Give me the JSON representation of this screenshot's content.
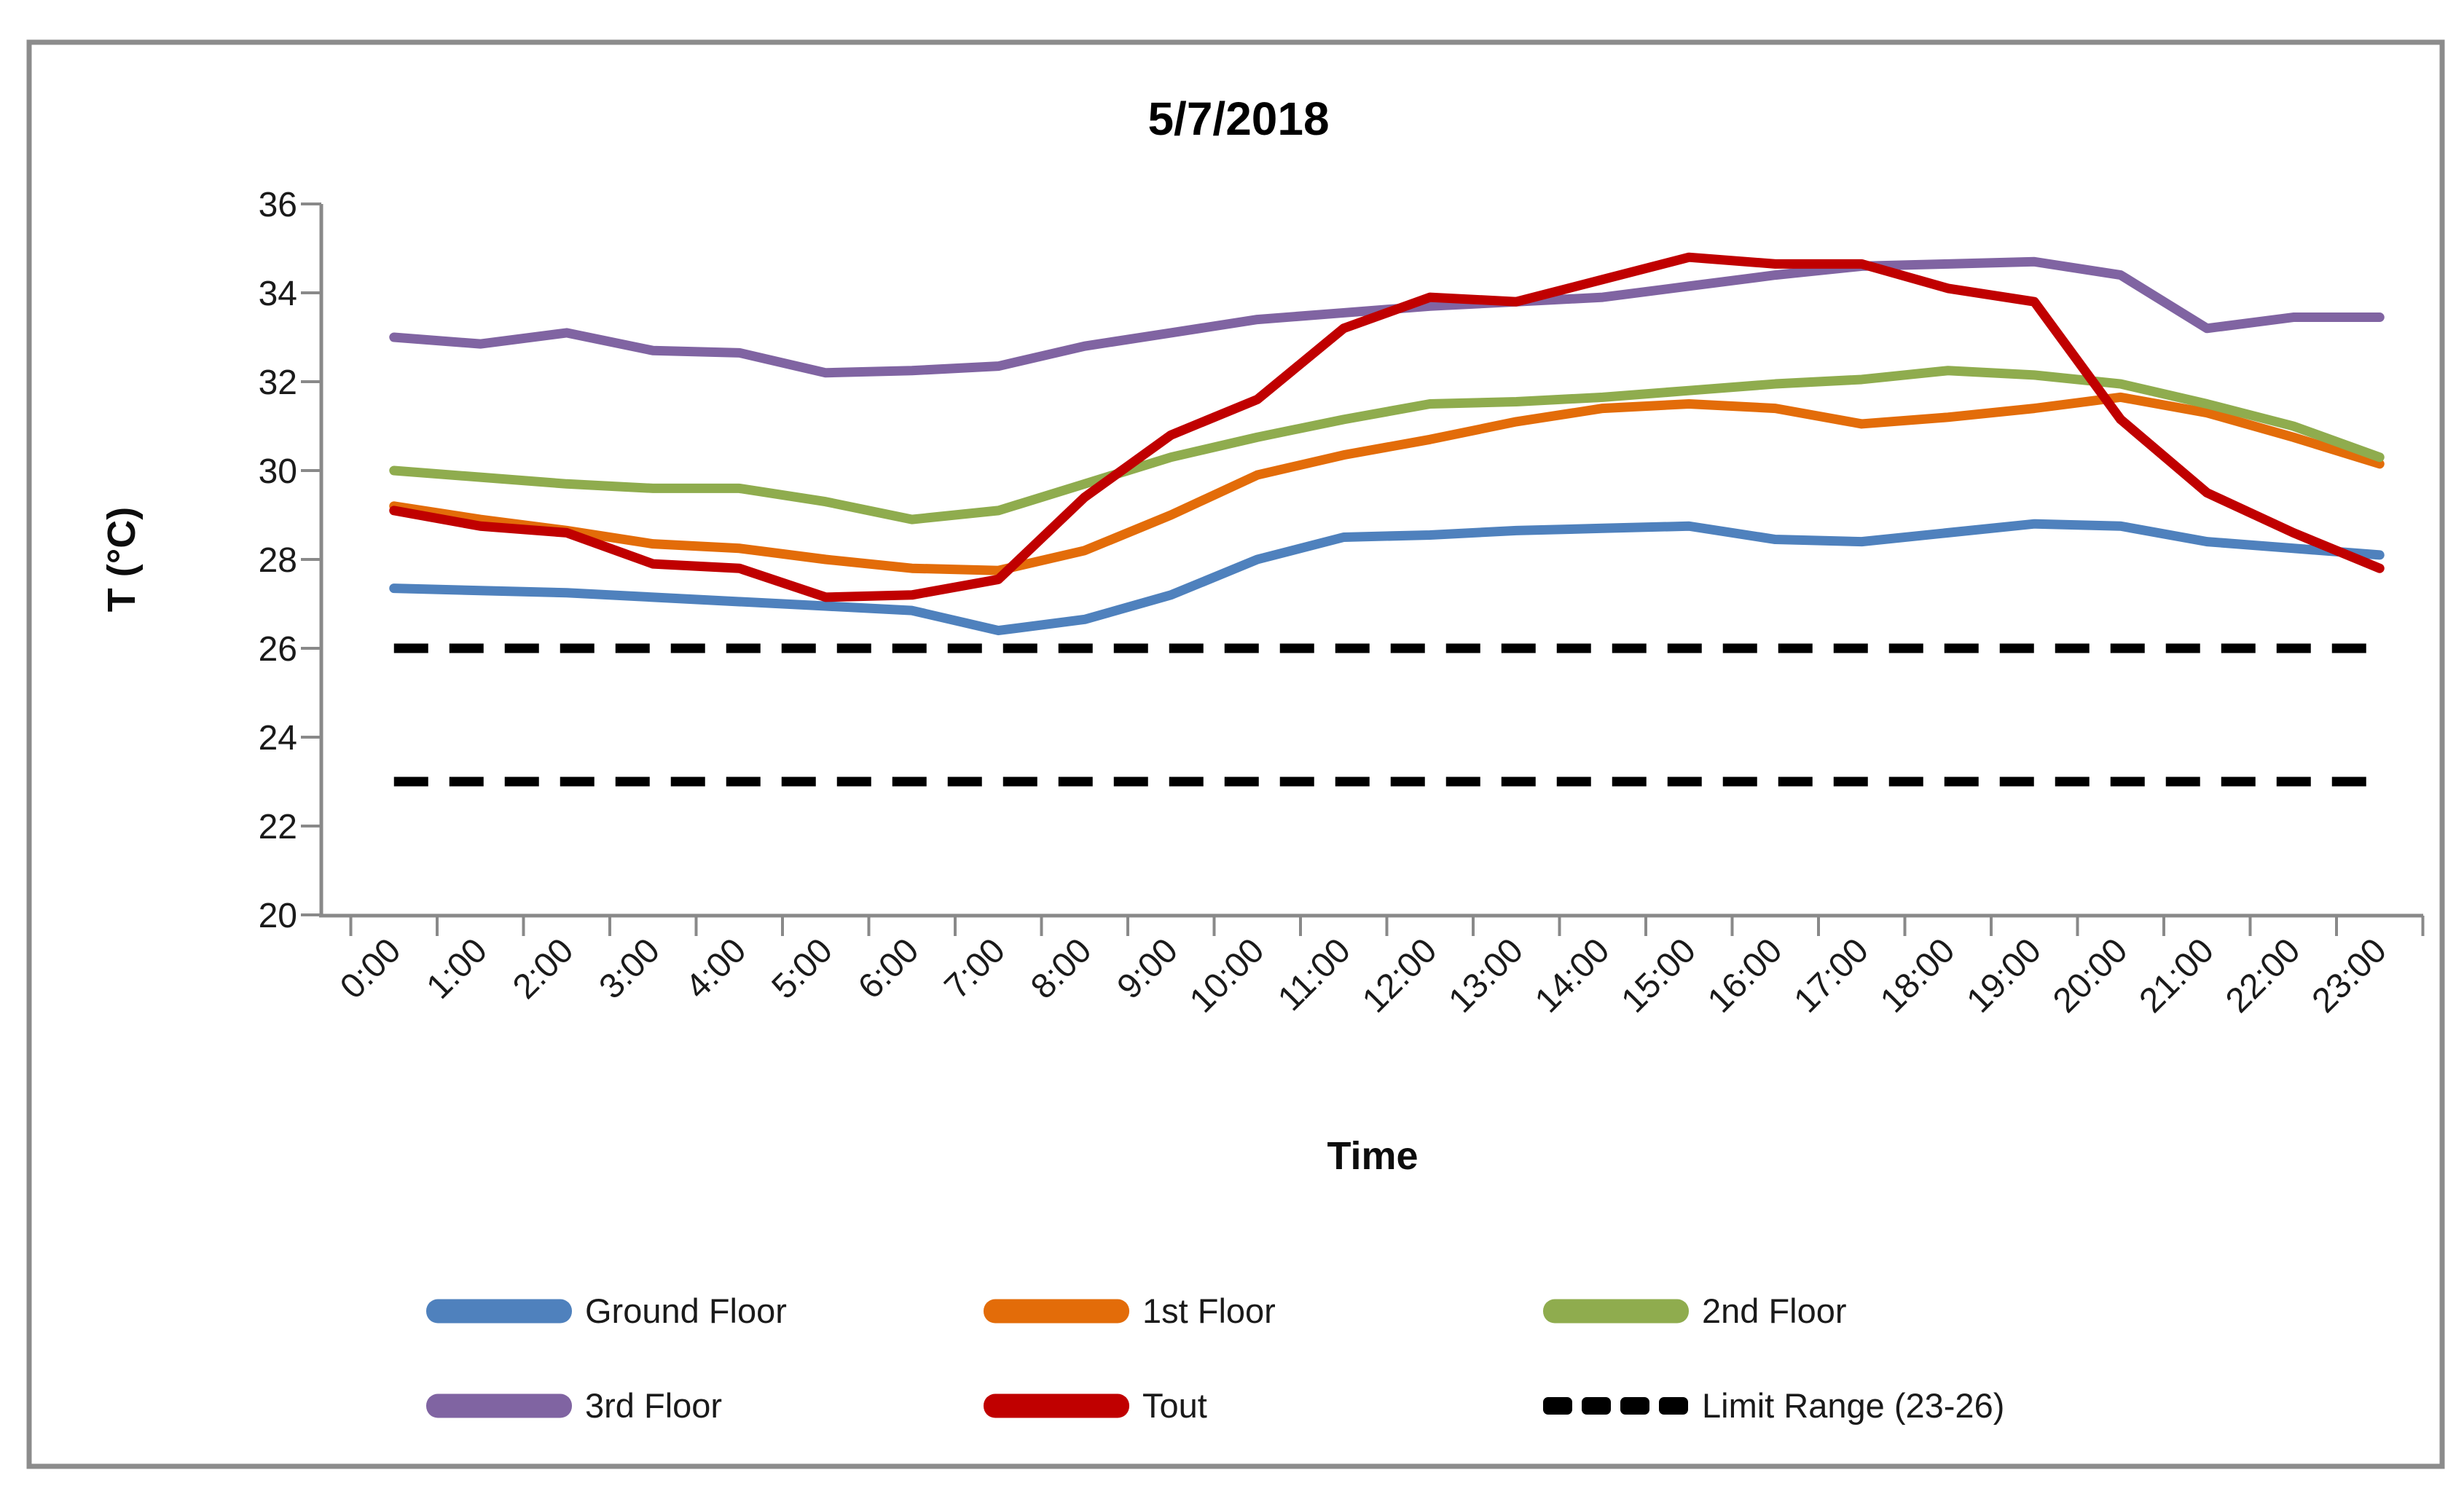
{
  "title": "5/7/2018",
  "y_axis": {
    "label": "T (°C)",
    "tick_labels": [
      "36",
      "34",
      "32",
      "30",
      "28",
      "26",
      "24",
      "22",
      "20"
    ]
  },
  "x_axis": {
    "label": "Time"
  },
  "legend": {
    "position": "bottom",
    "entries": [
      "Ground Floor",
      "1st Floor",
      "2nd Floor",
      "3rd Floor",
      "Tout",
      "Limit Range (23-26)"
    ]
  },
  "chart_data": {
    "type": "line",
    "title": "5/7/2018",
    "xlabel": "Time",
    "ylabel": "T (°C)",
    "ylim": [
      20,
      36
    ],
    "y_tick_step": 2,
    "grid": false,
    "legend_position": "bottom",
    "categories": [
      "0:00",
      "1:00",
      "2:00",
      "3:00",
      "4:00",
      "5:00",
      "6:00",
      "7:00",
      "8:00",
      "9:00",
      "10:00",
      "11:00",
      "12:00",
      "13:00",
      "14:00",
      "15:00",
      "16:00",
      "17:00",
      "18:00",
      "19:00",
      "20:00",
      "21:00",
      "22:00",
      "23:00"
    ],
    "series": [
      {
        "name": "Ground Floor",
        "color": "#4F81BD",
        "values": [
          27.35,
          27.3,
          27.25,
          27.15,
          27.05,
          26.95,
          26.85,
          26.4,
          26.65,
          27.2,
          28.0,
          28.5,
          28.55,
          28.65,
          28.7,
          28.75,
          28.45,
          28.4,
          28.6,
          28.8,
          28.75,
          28.4,
          28.25,
          28.1
        ]
      },
      {
        "name": "1st Floor",
        "color": "#E36C09",
        "values": [
          29.2,
          28.9,
          28.65,
          28.35,
          28.25,
          28.0,
          27.8,
          27.75,
          28.2,
          29.0,
          29.9,
          30.35,
          30.7,
          31.1,
          31.4,
          31.5,
          31.4,
          31.05,
          31.2,
          31.4,
          31.65,
          31.3,
          30.75,
          30.15
        ]
      },
      {
        "name": "2nd Floor",
        "color": "#8FAC4E",
        "values": [
          30.0,
          29.85,
          29.7,
          29.6,
          29.6,
          29.3,
          28.9,
          29.1,
          29.7,
          30.3,
          30.75,
          31.15,
          31.5,
          31.55,
          31.65,
          31.8,
          31.95,
          32.05,
          32.25,
          32.15,
          31.95,
          31.5,
          31.0,
          30.3
        ]
      },
      {
        "name": "3rd Floor",
        "color": "#8064A2",
        "values": [
          33.0,
          32.85,
          33.1,
          32.7,
          32.65,
          32.2,
          32.25,
          32.35,
          32.8,
          33.1,
          33.4,
          33.55,
          33.7,
          33.8,
          33.9,
          34.15,
          34.4,
          34.6,
          34.65,
          34.7,
          34.4,
          33.2,
          33.45,
          33.45
        ]
      },
      {
        "name": "Tout",
        "color": "#C00000",
        "values": [
          29.1,
          28.75,
          28.6,
          27.9,
          27.8,
          27.15,
          27.2,
          27.55,
          29.4,
          30.8,
          31.6,
          33.2,
          33.9,
          33.8,
          34.3,
          34.8,
          34.65,
          34.65,
          34.1,
          33.8,
          31.15,
          29.5,
          28.6,
          27.8
        ]
      }
    ],
    "limit_range": {
      "label": "Limit Range (23-26)",
      "color": "#000000",
      "style": "dashed",
      "values": [
        26,
        23
      ]
    }
  }
}
